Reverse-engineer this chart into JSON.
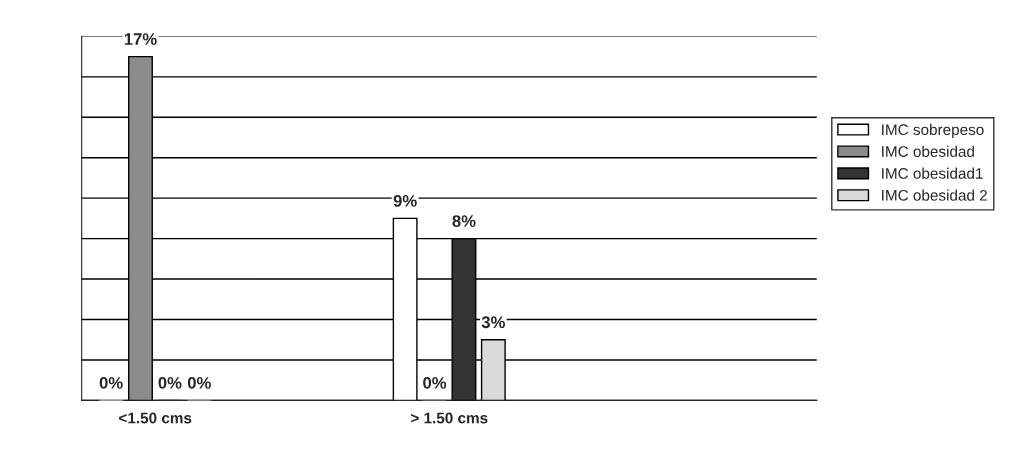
{
  "chart_data": {
    "type": "bar",
    "categories": [
      "<1.50 cms",
      null,
      "> 1.50 cms",
      null,
      null
    ],
    "series": [
      {
        "name": "IMC sobrepeso",
        "color": "#ffffff",
        "values": [
          0,
          null,
          9,
          null,
          null
        ],
        "value_labels": [
          "0%",
          null,
          "9%",
          null,
          null
        ]
      },
      {
        "name": "IMC obesidad",
        "color": "#8c8c8c",
        "values": [
          17,
          null,
          0,
          null,
          null
        ],
        "value_labels": [
          "17%",
          null,
          "0%",
          null,
          null
        ]
      },
      {
        "name": "IMC obesidad1",
        "color": "#333333",
        "values": [
          0,
          null,
          8,
          null,
          null
        ],
        "value_labels": [
          "0%",
          null,
          "8%",
          null,
          null
        ]
      },
      {
        "name": "IMC obesidad 2",
        "color": "#d9d9d9",
        "values": [
          0,
          null,
          3,
          null,
          null
        ],
        "value_labels": [
          "0%",
          null,
          "3%",
          null,
          null
        ]
      }
    ],
    "ylim": [
      0,
      18
    ],
    "yticks": [
      {
        "value": 0,
        "label": null
      },
      {
        "value": 2,
        "label": null
      },
      {
        "value": 4,
        "label": null
      },
      {
        "value": 6,
        "label": null
      },
      {
        "value": 8,
        "label": null
      },
      {
        "value": 10,
        "label": null
      },
      {
        "value": 12,
        "label": null
      },
      {
        "value": 14,
        "label": null
      },
      {
        "value": 16,
        "label": null
      },
      {
        "value": 18,
        "label": null
      }
    ],
    "grid": "y",
    "legend": "right"
  }
}
